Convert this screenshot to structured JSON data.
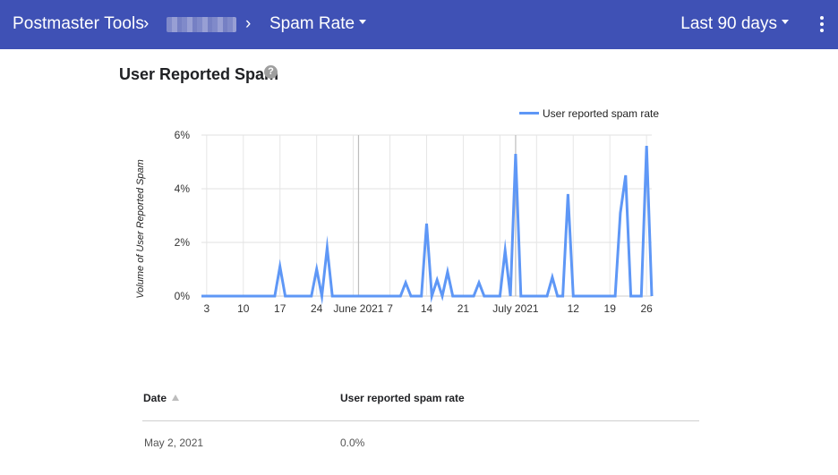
{
  "app": {
    "brand": "Postmaster Tools",
    "breadcrumb_sep": "›",
    "dashboard_menu": "Spam Rate",
    "date_range": "Last 90 days"
  },
  "section": {
    "title": "User Reported Spam",
    "help_icon": "?"
  },
  "chart_data": {
    "type": "line",
    "title": "",
    "xlabel": "",
    "ylabel": "Volume of User Reported Spam",
    "ylim": [
      0,
      6
    ],
    "y_ticks": [
      "0%",
      "2%",
      "4%",
      "6%"
    ],
    "x_tick_labels": [
      "3",
      "10",
      "17",
      "24",
      "June 2021",
      "7",
      "14",
      "21",
      "July 2021",
      "12",
      "19",
      "26"
    ],
    "legend": "top-right",
    "grid": true,
    "color": "#5e97f6",
    "series": [
      {
        "name": "User reported spam rate",
        "x": [
          "2021-05-02",
          "2021-05-03",
          "2021-05-04",
          "2021-05-05",
          "2021-05-06",
          "2021-05-07",
          "2021-05-08",
          "2021-05-09",
          "2021-05-10",
          "2021-05-11",
          "2021-05-12",
          "2021-05-13",
          "2021-05-14",
          "2021-05-15",
          "2021-05-16",
          "2021-05-17",
          "2021-05-18",
          "2021-05-19",
          "2021-05-20",
          "2021-05-21",
          "2021-05-22",
          "2021-05-23",
          "2021-05-24",
          "2021-05-25",
          "2021-05-26",
          "2021-05-27",
          "2021-05-28",
          "2021-05-29",
          "2021-05-30",
          "2021-05-31",
          "2021-06-01",
          "2021-06-02",
          "2021-06-03",
          "2021-06-04",
          "2021-06-05",
          "2021-06-06",
          "2021-06-07",
          "2021-06-08",
          "2021-06-09",
          "2021-06-10",
          "2021-06-11",
          "2021-06-12",
          "2021-06-13",
          "2021-06-14",
          "2021-06-15",
          "2021-06-16",
          "2021-06-17",
          "2021-06-18",
          "2021-06-19",
          "2021-06-20",
          "2021-06-21",
          "2021-06-22",
          "2021-06-23",
          "2021-06-24",
          "2021-06-25",
          "2021-06-26",
          "2021-06-27",
          "2021-06-28",
          "2021-06-29",
          "2021-06-30",
          "2021-07-01",
          "2021-07-02",
          "2021-07-03",
          "2021-07-04",
          "2021-07-05",
          "2021-07-06",
          "2021-07-07",
          "2021-07-08",
          "2021-07-09",
          "2021-07-10",
          "2021-07-11",
          "2021-07-12",
          "2021-07-13",
          "2021-07-14",
          "2021-07-15",
          "2021-07-16",
          "2021-07-17",
          "2021-07-18",
          "2021-07-19",
          "2021-07-20",
          "2021-07-21",
          "2021-07-22",
          "2021-07-23",
          "2021-07-24",
          "2021-07-25",
          "2021-07-26",
          "2021-07-27"
        ],
        "values": [
          0,
          0,
          0,
          0,
          0,
          0,
          0,
          0,
          0,
          0,
          0,
          0,
          0,
          0,
          0,
          1.1,
          0,
          0,
          0,
          0,
          0,
          0,
          1.0,
          0,
          1.8,
          0,
          0,
          0,
          0,
          0,
          0,
          0,
          0,
          0,
          0,
          0,
          0,
          0,
          0,
          0.5,
          0,
          0,
          0,
          2.7,
          0,
          0.6,
          0,
          0.9,
          0,
          0,
          0,
          0,
          0,
          0.5,
          0,
          0,
          0,
          0,
          1.7,
          0,
          5.3,
          0,
          0,
          0,
          0,
          0,
          0,
          0.7,
          0,
          0,
          3.8,
          0,
          0,
          0,
          0,
          0,
          0,
          0,
          0,
          0,
          3.1,
          4.5,
          0,
          0,
          0,
          5.6,
          0
        ]
      }
    ],
    "vertical_markers": [
      "2021-06-01",
      "2021-07-01"
    ]
  },
  "table": {
    "col_date": "Date",
    "col_rate": "User reported spam rate",
    "rows": [
      {
        "date": "May 2, 2021",
        "rate": "0.0%"
      }
    ]
  },
  "icons": {
    "breadcrumb": "chevron-right-icon",
    "dropdown": "caret-down-icon",
    "more": "more-vert-icon",
    "help": "help-circle-icon",
    "sort": "sort-asc-icon"
  }
}
